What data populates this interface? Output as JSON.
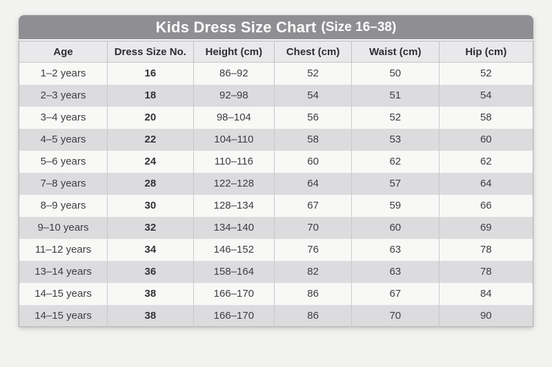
{
  "chart_data": {
    "type": "table",
    "title": "Kids Dress Size Chart",
    "subtitle": "(Size 16–38)",
    "columns": [
      "Age",
      "Dress Size No.",
      "Height (cm)",
      "Chest (cm)",
      "Waist (cm)",
      "Hip (cm)"
    ],
    "rows": [
      [
        "1–2 years",
        "16",
        "86–92",
        "52",
        "50",
        "52"
      ],
      [
        "2–3 years",
        "18",
        "92–98",
        "54",
        "51",
        "54"
      ],
      [
        "3–4 years",
        "20",
        "98–104",
        "56",
        "52",
        "58"
      ],
      [
        "4–5 years",
        "22",
        "104–110",
        "58",
        "53",
        "60"
      ],
      [
        "5–6 years",
        "24",
        "110–116",
        "60",
        "62",
        "62"
      ],
      [
        "7–8 years",
        "28",
        "122–128",
        "64",
        "57",
        "64"
      ],
      [
        "8–9 years",
        "30",
        "128–134",
        "67",
        "59",
        "66"
      ],
      [
        "9–10 years",
        "32",
        "134–140",
        "70",
        "60",
        "69"
      ],
      [
        "11–12 years",
        "34",
        "146–152",
        "76",
        "63",
        "78"
      ],
      [
        "13–14 years",
        "36",
        "158–164",
        "82",
        "63",
        "78"
      ],
      [
        "14–15 years",
        "38",
        "166–170",
        "86",
        "67",
        "84"
      ],
      [
        "14–15 years",
        "38",
        "166–170",
        "86",
        "70",
        "90"
      ]
    ]
  },
  "colors": {
    "page_bg": "#f2f2f0",
    "title_bar": "#8f8f93",
    "title_text": "#ffffff",
    "header_bg": "#e9e9eb",
    "row_odd_bg": "#f8f8f7",
    "row_even_bg": "#dcdcdf",
    "text": "#3d3d3f",
    "grid_line": "#c0c0c3"
  }
}
